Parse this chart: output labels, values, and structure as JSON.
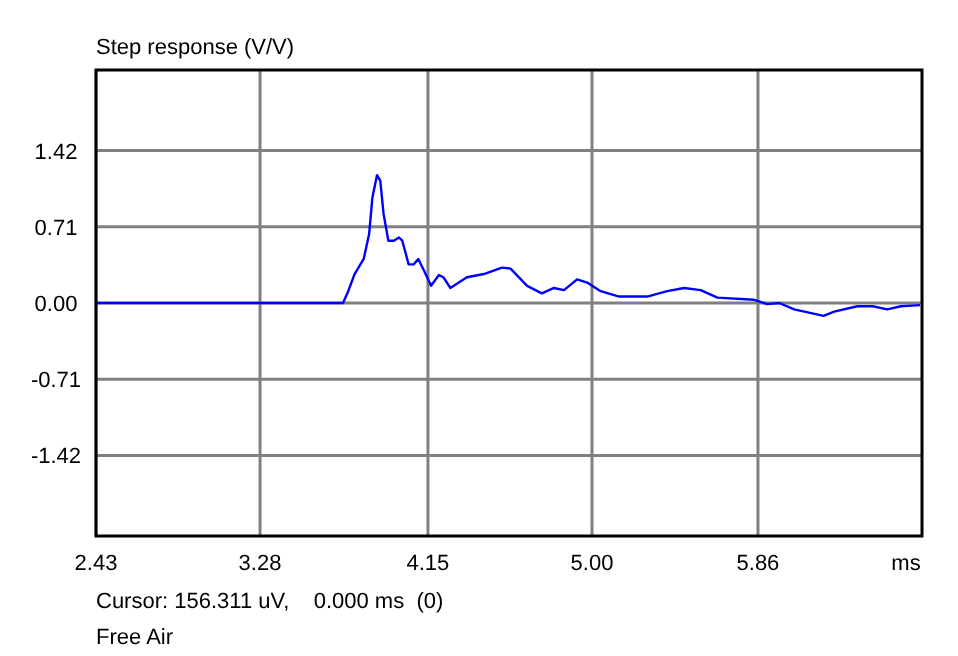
{
  "chart_data": {
    "type": "line",
    "title": "Step response (V/V)",
    "xlabel": "ms",
    "annotations": [
      "Cursor: 156.311 uV,    0.000 ms  (0)",
      "Free Air"
    ],
    "xlim": [
      2.43,
      6.71
    ],
    "ylim": [
      -2.17,
      2.17
    ],
    "xticks": [
      2.43,
      3.28,
      4.15,
      {
        "value": 5,
        "label": "5.00"
      },
      5.86
    ],
    "yticks": [
      1.42,
      0.71,
      {
        "value": 0,
        "label": "0.00"
      },
      -0.71,
      -1.42
    ],
    "grid": true,
    "marker": "none",
    "line_style": "solid",
    "series": [
      {
        "color": "#0000ff",
        "x": [
          2.43,
          3.71,
          3.737,
          3.77,
          3.817,
          3.845,
          3.862,
          3.886,
          3.903,
          3.92,
          3.945,
          3.973,
          4.0,
          4.017,
          4.05,
          4.076,
          4.1,
          4.13,
          4.166,
          4.207,
          4.23,
          4.266,
          4.352,
          4.44,
          4.533,
          4.578,
          4.664,
          4.74,
          4.803,
          4.855,
          4.923,
          4.975,
          5.045,
          5.141,
          5.286,
          5.39,
          5.477,
          5.563,
          5.65,
          5.84,
          5.908,
          5.97,
          6.048,
          6.2,
          6.255,
          6.375,
          6.455,
          6.53,
          6.6,
          6.7
        ],
        "values": [
          0,
          0,
          0.11,
          0.27,
          0.41,
          0.64,
          0.98,
          1.19,
          1.14,
          0.83,
          0.58,
          0.58,
          0.61,
          0.58,
          0.36,
          0.36,
          0.41,
          0.3,
          0.16,
          0.26,
          0.24,
          0.14,
          0.24,
          0.27,
          0.33,
          0.32,
          0.16,
          0.09,
          0.14,
          0.12,
          0.22,
          0.19,
          0.11,
          0.06,
          0.06,
          0.11,
          0.14,
          0.12,
          0.05,
          0.03,
          -0.01,
          0,
          -0.06,
          -0.12,
          -0.08,
          -0.03,
          -0.03,
          -0.06,
          -0.03,
          -0.02
        ]
      }
    ]
  }
}
